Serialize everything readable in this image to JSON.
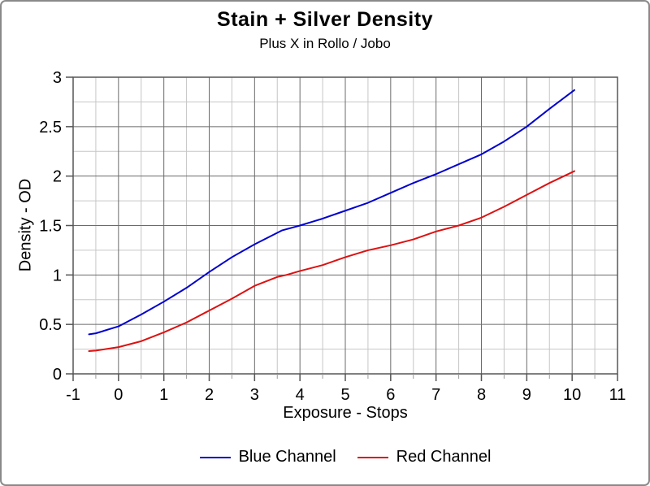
{
  "window": {
    "background": "#FFFFFF",
    "border_color": "#8A8A8A"
  },
  "chart_data": {
    "type": "line",
    "title": "Stain + Silver Density",
    "subtitle": "Plus X in Rollo / Jobo",
    "xlabel": "Exposure - Stops",
    "ylabel": "Density - OD",
    "xlim": [
      -1,
      11
    ],
    "ylim": [
      0,
      3
    ],
    "x_major_ticks": [
      -1,
      0,
      1,
      2,
      3,
      4,
      5,
      6,
      7,
      8,
      9,
      10,
      11
    ],
    "x_tick_labels": [
      "-1",
      "0",
      "1",
      "2",
      "3",
      "4",
      "5",
      "6",
      "7",
      "8",
      "9",
      "10",
      "11"
    ],
    "x_minor_ticks": [
      -0.5,
      0.5,
      1.5,
      2.5,
      3.5,
      4.5,
      5.5,
      6.5,
      7.5,
      8.5,
      9.5,
      10.5
    ],
    "y_major_ticks": [
      0,
      0.5,
      1,
      1.5,
      2,
      2.5,
      3
    ],
    "y_tick_labels": [
      "0",
      "0.5",
      "1",
      "1.5",
      "2",
      "2.5",
      "3"
    ],
    "y_minor_ticks": [
      0.25,
      0.75,
      1.25,
      1.75,
      2.25,
      2.75
    ],
    "grid": "major-and-minor",
    "major_grid_color": "#6B6B6B",
    "minor_grid_color": "#C6C6C6",
    "legend_position": "bottom-center",
    "series": [
      {
        "name": "Blue Channel",
        "color": "#0000D0",
        "x": [
          -0.65,
          -0.5,
          0,
          0.5,
          1,
          1.5,
          2,
          2.5,
          3,
          3.6,
          4,
          4.5,
          5,
          5.5,
          6,
          6.5,
          7,
          7.5,
          8,
          8.5,
          9,
          9.5,
          10.05
        ],
        "y": [
          0.4,
          0.41,
          0.48,
          0.6,
          0.73,
          0.87,
          1.03,
          1.18,
          1.31,
          1.45,
          1.5,
          1.57,
          1.65,
          1.73,
          1.83,
          1.93,
          2.02,
          2.12,
          2.22,
          2.35,
          2.5,
          2.68,
          2.87
        ]
      },
      {
        "name": "Red Channel",
        "color": "#DD1111",
        "x": [
          -0.65,
          -0.5,
          0,
          0.5,
          1,
          1.5,
          2,
          2.5,
          3,
          3.5,
          3.7,
          4,
          4.5,
          5,
          5.5,
          6,
          6.5,
          7,
          7.5,
          8,
          8.5,
          9,
          9.5,
          10.05
        ],
        "y": [
          0.23,
          0.235,
          0.27,
          0.33,
          0.42,
          0.52,
          0.64,
          0.76,
          0.89,
          0.98,
          1.0,
          1.04,
          1.1,
          1.18,
          1.25,
          1.3,
          1.36,
          1.44,
          1.5,
          1.58,
          1.69,
          1.81,
          1.93,
          2.05
        ]
      }
    ]
  }
}
